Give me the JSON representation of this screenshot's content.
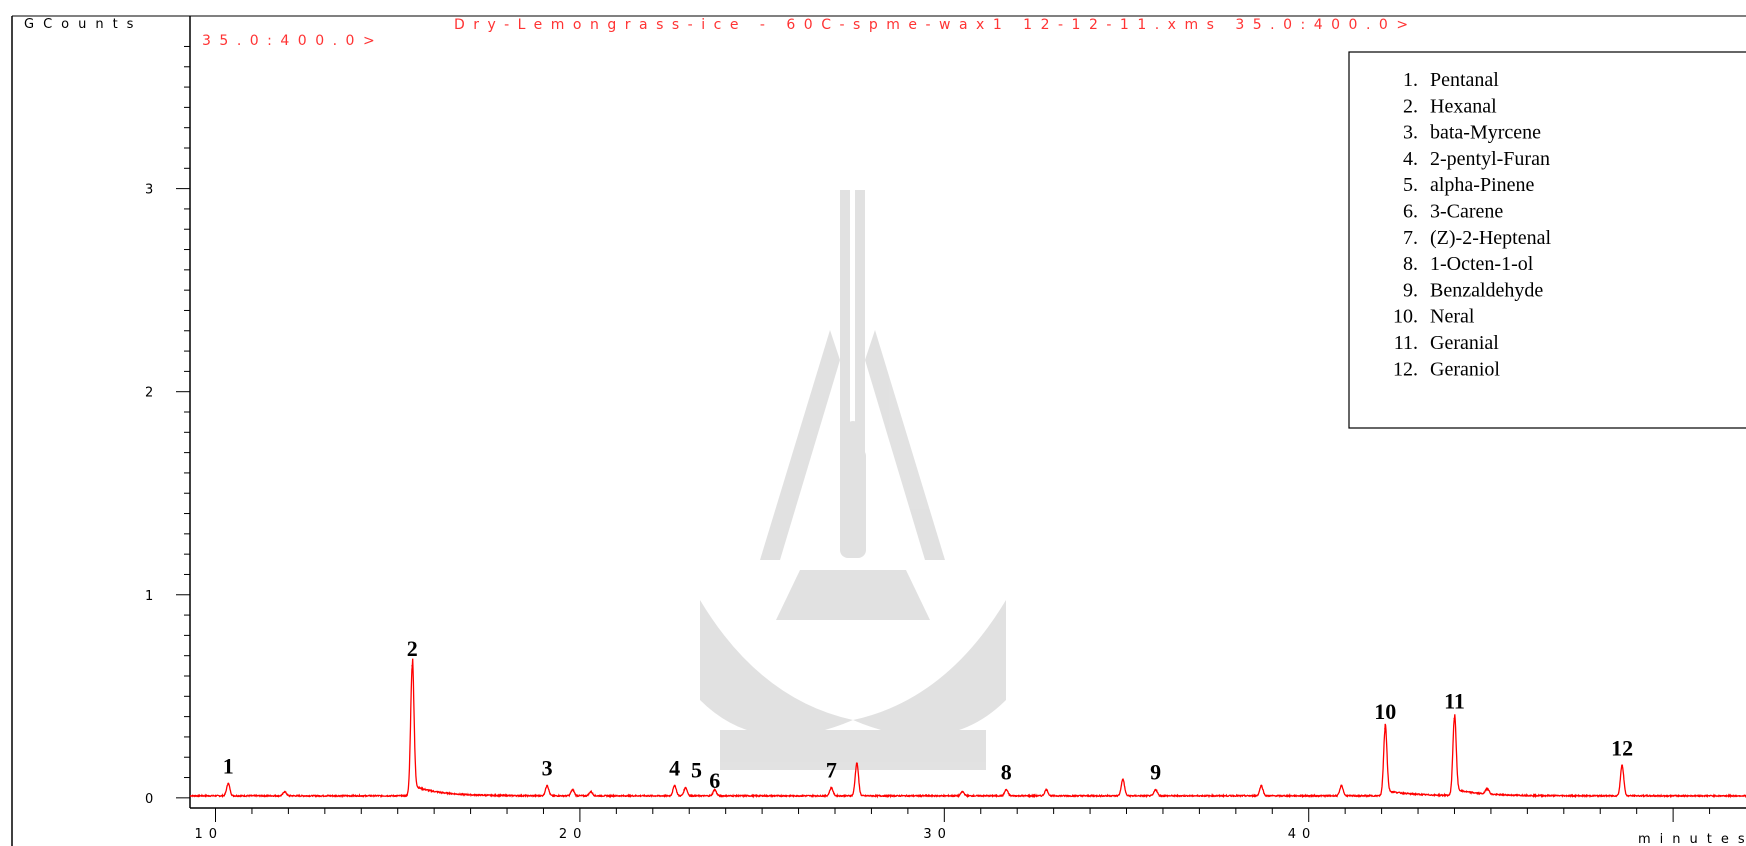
{
  "chart_data": {
    "type": "line",
    "title": "Dry-Lemongrass-ice - 60C-spme-wax1 12-12-11.xms 35.0:400.0>",
    "subtitle": "35.0:400.0>",
    "ylabel": "GCounts",
    "xlabel": "minutes",
    "xlim": [
      9.3,
      52
    ],
    "ylim": [
      -0.05,
      3.85
    ],
    "x_ticks": [
      10,
      20,
      30,
      40
    ],
    "x_tick_labels": [
      "10",
      "20",
      "30",
      "40"
    ],
    "y_ticks": [
      0,
      1,
      2,
      3
    ],
    "y_tick_labels": [
      "0",
      "1",
      "2",
      "3"
    ],
    "series": [
      {
        "color": "#ff0000",
        "baseline": 0.01,
        "peaks": [
          {
            "x": 10.35,
            "y": 0.07
          },
          {
            "x": 11.9,
            "y": 0.03
          },
          {
            "x": 15.4,
            "y": 0.65
          },
          {
            "x": 19.1,
            "y": 0.06
          },
          {
            "x": 19.8,
            "y": 0.04
          },
          {
            "x": 20.3,
            "y": 0.03
          },
          {
            "x": 22.6,
            "y": 0.06
          },
          {
            "x": 22.9,
            "y": 0.05
          },
          {
            "x": 23.7,
            "y": 0.04
          },
          {
            "x": 26.9,
            "y": 0.05
          },
          {
            "x": 27.6,
            "y": 0.17
          },
          {
            "x": 30.5,
            "y": 0.03
          },
          {
            "x": 31.7,
            "y": 0.04
          },
          {
            "x": 32.8,
            "y": 0.04
          },
          {
            "x": 34.9,
            "y": 0.09
          },
          {
            "x": 35.8,
            "y": 0.04
          },
          {
            "x": 38.7,
            "y": 0.06
          },
          {
            "x": 40.9,
            "y": 0.06
          },
          {
            "x": 42.1,
            "y": 0.34
          },
          {
            "x": 44.0,
            "y": 0.39
          },
          {
            "x": 44.9,
            "y": 0.04
          },
          {
            "x": 48.6,
            "y": 0.16
          }
        ]
      }
    ],
    "peak_labels": [
      {
        "text": "1",
        "x": 10.35,
        "y": 0.07
      },
      {
        "text": "2",
        "x": 15.4,
        "y": 0.65
      },
      {
        "text": "3",
        "x": 19.1,
        "y": 0.06
      },
      {
        "text": "4",
        "x": 22.6,
        "y": 0.06
      },
      {
        "text": "5",
        "x": 23.2,
        "y": 0.05
      },
      {
        "text": "6",
        "x": 23.7,
        "y": 0.0
      },
      {
        "text": "7",
        "x": 26.9,
        "y": 0.05
      },
      {
        "text": "8",
        "x": 31.7,
        "y": 0.04
      },
      {
        "text": "9",
        "x": 35.8,
        "y": 0.04
      },
      {
        "text": "10",
        "x": 42.1,
        "y": 0.34
      },
      {
        "text": "11",
        "x": 44.0,
        "y": 0.39
      },
      {
        "text": "12",
        "x": 48.6,
        "y": 0.16
      }
    ],
    "legend": {
      "position": "top-right",
      "items": [
        {
          "num": "1.",
          "name": "Pentanal"
        },
        {
          "num": "2.",
          "name": "Hexanal"
        },
        {
          "num": "3.",
          "name": "bata-Myrcene"
        },
        {
          "num": "4.",
          "name": "2-pentyl-Furan"
        },
        {
          "num": "5.",
          "name": "alpha-Pinene"
        },
        {
          "num": "6.",
          "name": "3-Carene"
        },
        {
          "num": "7.",
          "name": " (Z)-2-Heptenal"
        },
        {
          "num": "8.",
          "name": "1-Octen-1-ol"
        },
        {
          "num": "9.",
          "name": "Benzaldehyde"
        },
        {
          "num": "10.",
          "name": "Neral"
        },
        {
          "num": "11.",
          "name": "Geranial"
        },
        {
          "num": "12.",
          "name": "Geraniol"
        }
      ]
    }
  }
}
